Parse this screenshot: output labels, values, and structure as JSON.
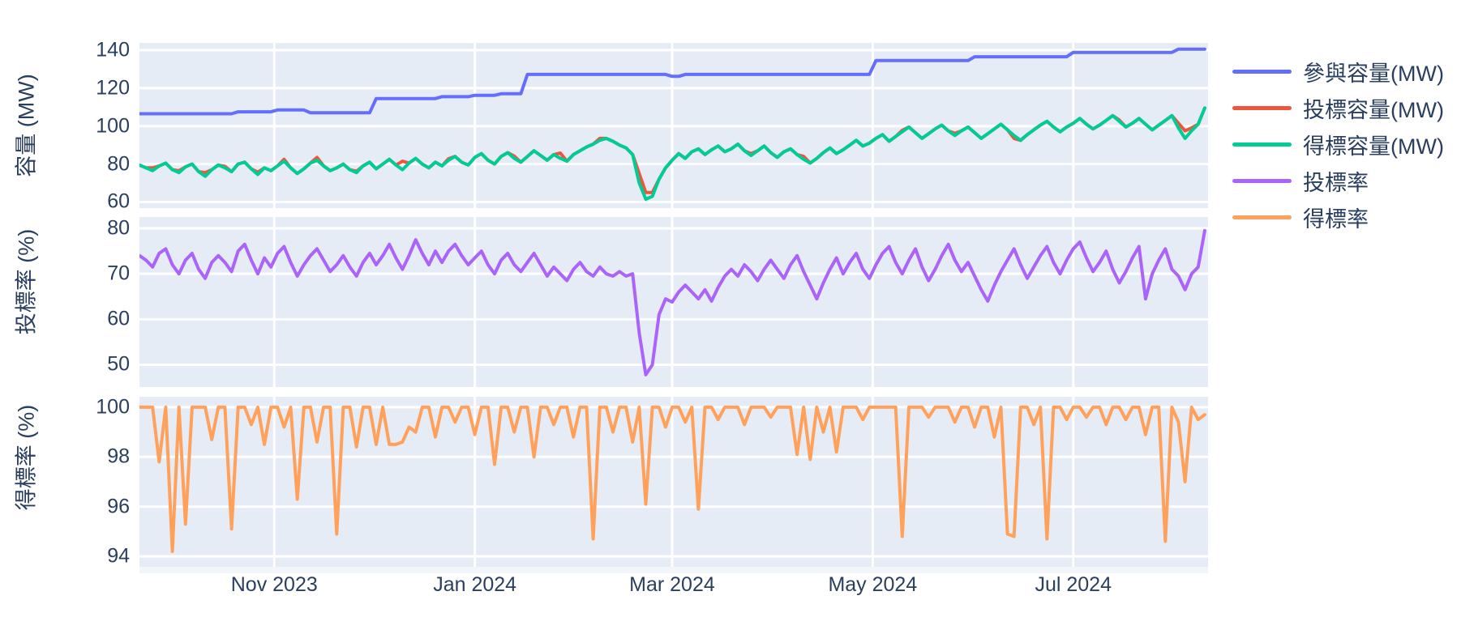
{
  "chart_data": {
    "type": "line",
    "title": "",
    "plot_bg": "#e5ecf6",
    "grid_color": "#ffffff",
    "text_color": "#2a3f5f",
    "x_axis": {
      "start_date": "2023-09-21",
      "end_date": "2024-08-11",
      "total_days": 325,
      "tick_days": [
        41,
        102,
        162,
        223,
        284
      ],
      "tick_labels": [
        "Nov 2023",
        "Jan 2024",
        "Mar 2024",
        "May 2024",
        "Jul 2024"
      ]
    },
    "days": [
      0,
      2,
      4,
      6,
      8,
      10,
      12,
      14,
      16,
      18,
      20,
      22,
      24,
      26,
      28,
      30,
      32,
      34,
      36,
      38,
      40,
      42,
      44,
      46,
      48,
      50,
      52,
      54,
      56,
      58,
      60,
      62,
      64,
      66,
      68,
      70,
      72,
      74,
      76,
      78,
      80,
      82,
      84,
      86,
      88,
      90,
      92,
      94,
      96,
      98,
      100,
      102,
      104,
      106,
      108,
      110,
      112,
      114,
      116,
      118,
      120,
      122,
      124,
      126,
      128,
      130,
      132,
      134,
      136,
      138,
      140,
      142,
      144,
      146,
      148,
      150,
      152,
      154,
      156,
      158,
      160,
      162,
      164,
      166,
      168,
      170,
      172,
      174,
      176,
      178,
      180,
      182,
      184,
      186,
      188,
      190,
      192,
      194,
      196,
      198,
      200,
      202,
      204,
      206,
      208,
      210,
      212,
      214,
      216,
      218,
      220,
      222,
      224,
      226,
      228,
      230,
      232,
      234,
      236,
      238,
      240,
      242,
      244,
      246,
      248,
      250,
      252,
      254,
      256,
      258,
      260,
      262,
      264,
      266,
      268,
      270,
      272,
      274,
      276,
      278,
      280,
      282,
      284,
      286,
      288,
      290,
      292,
      294,
      296,
      298,
      300,
      302,
      304,
      306,
      308,
      310,
      312,
      314,
      316,
      318,
      320,
      322,
      324
    ],
    "panels": [
      {
        "ylabel": "容量 (MW)",
        "yticks": [
          60,
          80,
          100,
          120,
          140
        ],
        "yrange": [
          56.8,
          143.8
        ],
        "series": [
          {
            "name": "參與容量(MW)",
            "color": "#636efa",
            "values": [
              106.5,
              106.5,
              106.5,
              106.5,
              106.5,
              106.5,
              106.5,
              106.5,
              106.5,
              106.5,
              106.5,
              106.5,
              106.5,
              106.5,
              106.5,
              107.5,
              107.5,
              107.5,
              107.5,
              107.5,
              107.5,
              108.5,
              108.5,
              108.5,
              108.5,
              108.5,
              107,
              107,
              107,
              107,
              107,
              107,
              107,
              107,
              107,
              107,
              114.5,
              114.5,
              114.5,
              114.5,
              114.5,
              114.5,
              114.5,
              114.5,
              114.5,
              114.5,
              115.5,
              115.5,
              115.5,
              115.5,
              115.5,
              116.2,
              116.2,
              116.2,
              116.2,
              117,
              117,
              117,
              117,
              127.2,
              127.2,
              127.2,
              127.2,
              127.2,
              127.2,
              127.2,
              127.2,
              127.2,
              127.2,
              127.2,
              127.2,
              127.2,
              127.2,
              127.2,
              127.2,
              127.2,
              127.2,
              127.2,
              127.2,
              127.2,
              127.2,
              126.2,
              126.2,
              127.2,
              127.2,
              127.2,
              127.2,
              127.2,
              127.2,
              127.2,
              127.2,
              127.2,
              127.2,
              127.2,
              127.2,
              127.2,
              127.2,
              127.2,
              127.2,
              127.2,
              127.2,
              127.2,
              127.2,
              127.2,
              127.2,
              127.2,
              127.2,
              127.2,
              127.2,
              127.2,
              127.2,
              127.2,
              134.5,
              134.5,
              134.5,
              134.5,
              134.5,
              134.5,
              134.5,
              134.5,
              134.5,
              134.5,
              134.5,
              134.5,
              134.5,
              134.5,
              134.5,
              136.5,
              136.5,
              136.5,
              136.5,
              136.5,
              136.5,
              136.5,
              136.5,
              136.5,
              136.5,
              136.5,
              136.5,
              136.5,
              136.5,
              136.5,
              138.8,
              138.8,
              138.8,
              138.8,
              138.8,
              138.8,
              138.8,
              138.8,
              138.8,
              138.8,
              138.8,
              138.8,
              138.8,
              138.8,
              138.8,
              138.8,
              140.5,
              140.5,
              140.5,
              140.5,
              140.5
            ]
          },
          {
            "name": "投標容量(MW)",
            "color": "#ef553b",
            "values": [
              79.5,
              78,
              78,
              79,
              80.5,
              77,
              76.5,
              78.5,
              80,
              76,
              75.5,
              77,
              79.5,
              78.8,
              76,
              80,
              81,
              77.5,
              75.7,
              78,
              76.5,
              79,
              82.5,
              78,
              75,
              77.5,
              80.5,
              83.5,
              79,
              76.5,
              78,
              80,
              77,
              76.2,
              79,
              81,
              77.5,
              80,
              82.5,
              79.5,
              81.5,
              80.5,
              83,
              80,
              78,
              81,
              79,
              82.8,
              84,
              81,
              79.5,
              83.5,
              85.5,
              82,
              80,
              84,
              86,
              84.2,
              81,
              84,
              87,
              84.5,
              82,
              85,
              85.8,
              81.5,
              85,
              87,
              89,
              90.5,
              93.5,
              93.5,
              92,
              90,
              88.5,
              85,
              75,
              65,
              65,
              72,
              78,
              82,
              85.5,
              83,
              86.5,
              88,
              85,
              87.5,
              89.5,
              86.5,
              88,
              90.5,
              87,
              85.5,
              87,
              89.5,
              86,
              83.5,
              86.5,
              88,
              85,
              84,
              80.5,
              83,
              86,
              88.5,
              85.5,
              87.5,
              90,
              92.5,
              89.5,
              91,
              93.5,
              95.5,
              92,
              94.5,
              97.8,
              99.5,
              96.5,
              93.5,
              96,
              98.5,
              100.5,
              97.5,
              96.2,
              97.5,
              99.5,
              96.5,
              93.5,
              96,
              98.5,
              101,
              98,
              93.5,
              92.5,
              95.5,
              98,
              100.5,
              102.5,
              99.5,
              97,
              99.5,
              101.5,
              104,
              101,
              98.5,
              100.5,
              103,
              105.5,
              103.2,
              99.5,
              101.5,
              104,
              101,
              98,
              100.5,
              103,
              105.5,
              101.5,
              97.5,
              99,
              101,
              109.5
            ]
          },
          {
            "name": "得標容量(MW)",
            "color": "#00cc96",
            "values": [
              79.5,
              78,
              76.5,
              79,
              80.5,
              77,
              75.5,
              78.5,
              80,
              76,
              73.5,
              77,
              79.5,
              78,
              76,
              80,
              81,
              77.5,
              74.5,
              78,
              76.5,
              79,
              81.5,
              78,
              75,
              77.5,
              80.5,
              82,
              79,
              76.5,
              78,
              80,
              77,
              75.5,
              79,
              81,
              77.5,
              80,
              82.5,
              79.5,
              77,
              80.5,
              83,
              80,
              78,
              81,
              79,
              82,
              84,
              81,
              79.5,
              83.5,
              85.5,
              82,
              80,
              84,
              86,
              83,
              81,
              84,
              87,
              84.5,
              82,
              85,
              83,
              81.5,
              85,
              87,
              89,
              90.5,
              92.5,
              93.5,
              92,
              90,
              88.5,
              85,
              70,
              61.5,
              63,
              72,
              78,
              82,
              85.5,
              83,
              86.5,
              88,
              85,
              87.5,
              89.5,
              86.5,
              88,
              90.5,
              87,
              84.5,
              87,
              89.5,
              86,
              83.5,
              86.5,
              88,
              85,
              82.5,
              80.5,
              83,
              86,
              88.5,
              85.5,
              87.5,
              90,
              92.5,
              89.5,
              91,
              93.5,
              95.5,
              92,
              94.5,
              97,
              99.5,
              96.5,
              93.5,
              96,
              98.5,
              100.5,
              97.5,
              95,
              97.5,
              99.5,
              96.5,
              93.5,
              96,
              98.5,
              101,
              98,
              95,
              92.5,
              95.5,
              98,
              100.5,
              102.5,
              99.5,
              97,
              99.5,
              101.5,
              104,
              101,
              98.5,
              100.5,
              103,
              105.5,
              102.5,
              99.5,
              101.5,
              104,
              101,
              98,
              100.5,
              103,
              105.5,
              99,
              93.5,
              97.5,
              101,
              109.5
            ]
          }
        ]
      },
      {
        "ylabel": "投標率 (%)",
        "yticks": [
          50,
          60,
          70,
          80
        ],
        "yrange": [
          45.1,
          82.5
        ],
        "series": [
          {
            "name": "投標率",
            "color": "#ab63fa",
            "values": [
              74,
              73,
              71.5,
              74.5,
              75.5,
              72,
              70,
              73,
              74.5,
              71,
              69,
              72.5,
              74,
              72.5,
              70.5,
              75,
              76.5,
              73,
              70,
              73.5,
              71.5,
              74.5,
              76,
              72.5,
              69.5,
              72,
              74,
              75.5,
              73,
              70.5,
              72,
              74,
              71.5,
              69.5,
              72.5,
              74.5,
              72,
              74,
              76.5,
              73.5,
              71,
              74,
              77.5,
              74.5,
              72,
              75,
              72.5,
              75,
              76.5,
              74,
              72,
              73.5,
              75,
              72,
              70,
              73,
              74.5,
              72,
              70.5,
              72.5,
              74.5,
              72,
              69.5,
              71.5,
              70,
              68.5,
              71,
              72.5,
              70.5,
              69.5,
              71.5,
              70,
              69.5,
              70.5,
              69.5,
              70,
              57,
              47.8,
              50,
              61,
              64.5,
              63.8,
              66,
              67.5,
              66,
              64.5,
              66.5,
              64,
              67,
              69.5,
              71,
              69.5,
              72,
              70.5,
              68.5,
              71,
              73,
              71,
              69,
              72,
              74,
              70.5,
              67.5,
              64.5,
              68,
              71,
              73.5,
              70,
              72.5,
              74.5,
              71,
              69,
              72,
              74.5,
              76,
              72.5,
              70,
              73,
              75.5,
              71.5,
              68.5,
              71,
              74,
              76.5,
              73,
              70.5,
              72.5,
              69.5,
              66.5,
              64,
              67.5,
              70.5,
              73,
              75.5,
              72,
              69,
              71.5,
              74,
              76,
              72.5,
              70,
              73,
              75.5,
              77,
              73.5,
              70.5,
              72.5,
              75,
              71,
              68,
              70.5,
              73.5,
              76,
              64.5,
              70,
              73,
              75.5,
              71,
              69.5,
              66.5,
              70,
              71.5,
              79.5
            ]
          }
        ]
      },
      {
        "ylabel": "得標率 (%)",
        "yticks": [
          94,
          96,
          98,
          100
        ],
        "yrange": [
          93.58,
          100.42
        ],
        "series": [
          {
            "name": "得標率",
            "color": "#ffa15a",
            "values": [
              100,
              100,
              100,
              97.8,
              100,
              94.2,
              100,
              95.3,
              100,
              100,
              100,
              98.7,
              100,
              100,
              95.1,
              100,
              100,
              99.3,
              100,
              98.5,
              100,
              100,
              99.2,
              100,
              96.3,
              100,
              100,
              98.6,
              100,
              100,
              94.9,
              100,
              100,
              98.4,
              100,
              100,
              98.5,
              100,
              98.5,
              98.5,
              98.6,
              99.2,
              99,
              100,
              100,
              98.8,
              100,
              100,
              99.4,
              100,
              100,
              98.9,
              100,
              100,
              97.7,
              100,
              100,
              99,
              100,
              100,
              98,
              100,
              100,
              99.3,
              100,
              100,
              98.8,
              100,
              100,
              94.7,
              100,
              100,
              99,
              100,
              100,
              98.6,
              100,
              96.1,
              100,
              100,
              99.2,
              100,
              100,
              99.4,
              100,
              95.9,
              100,
              100,
              99.5,
              100,
              100,
              100,
              99.3,
              100,
              100,
              100,
              99.6,
              100,
              100,
              100,
              98.1,
              100,
              97.9,
              100,
              99,
              100,
              98.2,
              100,
              100,
              100,
              99.5,
              100,
              100,
              100,
              100,
              100,
              94.8,
              100,
              100,
              100,
              99.6,
              100,
              100,
              100,
              99.4,
              100,
              100,
              99.2,
              100,
              100,
              98.8,
              100,
              94.9,
              94.8,
              100,
              100,
              99.3,
              100,
              94.7,
              100,
              100,
              99.5,
              100,
              100,
              99.6,
              100,
              100,
              99.3,
              100,
              100,
              99.5,
              100,
              100,
              98.9,
              100,
              100,
              94.6,
              100,
              99.4,
              97,
              100,
              99.5,
              99.7
            ]
          }
        ]
      }
    ],
    "legend": [
      {
        "label": "參與容量(MW)",
        "color": "#636efa"
      },
      {
        "label": "投標容量(MW)",
        "color": "#ef553b"
      },
      {
        "label": "得標容量(MW)",
        "color": "#00cc96"
      },
      {
        "label": "投標率",
        "color": "#ab63fa"
      },
      {
        "label": "得標率",
        "color": "#ffa15a"
      }
    ]
  }
}
